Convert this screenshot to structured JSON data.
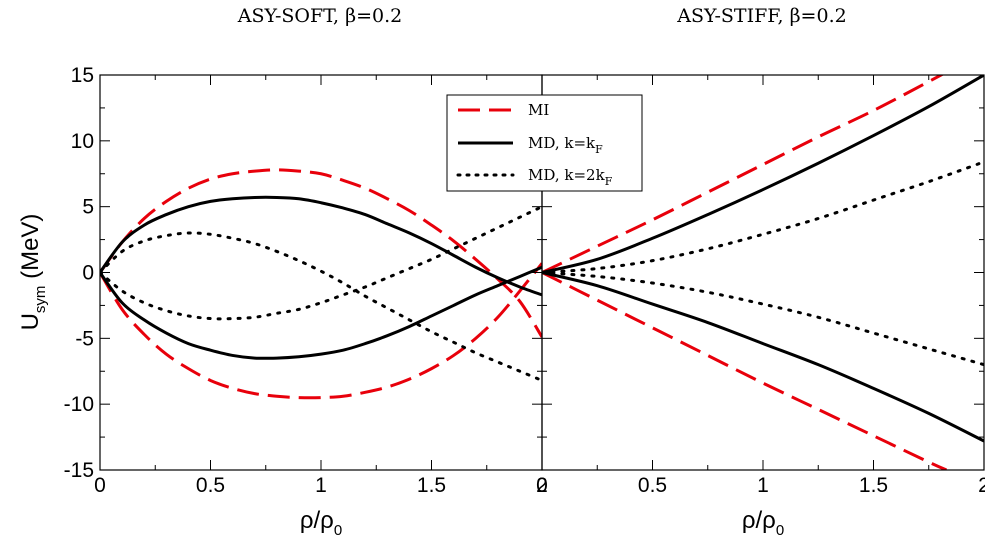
{
  "chart_data": [
    {
      "type": "line",
      "title": "ASY-SOFT, β=0.2",
      "xlabel": "ρ/ρ_0",
      "ylabel": "U_sym (MeV)",
      "xlim": [
        0,
        2
      ],
      "ylim": [
        -15,
        15
      ],
      "xticks": [
        "0",
        "0.5",
        "1",
        "1.5",
        "2"
      ],
      "yticks": [
        "15",
        "10",
        "5",
        "0",
        "-5",
        "-10",
        "-15"
      ],
      "series": [
        {
          "name": "MI",
          "style": "dashed",
          "color": "#e8000b",
          "x": [
            0,
            0.1,
            0.2,
            0.3,
            0.4,
            0.5,
            0.6,
            0.7,
            0.8,
            0.9,
            1.0,
            1.1,
            1.2,
            1.3,
            1.4,
            1.5,
            1.6,
            1.7,
            1.8,
            1.9,
            2.0
          ],
          "y": [
            0,
            2.3,
            4.1,
            5.4,
            6.4,
            7.1,
            7.5,
            7.7,
            7.8,
            7.7,
            7.5,
            7.0,
            6.4,
            5.6,
            4.7,
            3.6,
            2.4,
            1.0,
            -0.5,
            -2.2,
            -4.9
          ]
        },
        {
          "name": "MI",
          "style": "dashed",
          "color": "#e8000b",
          "legend": false,
          "x": [
            0,
            0.1,
            0.2,
            0.3,
            0.4,
            0.5,
            0.6,
            0.7,
            0.8,
            0.9,
            1.0,
            1.1,
            1.2,
            1.3,
            1.4,
            1.5,
            1.6,
            1.7,
            1.8,
            1.9,
            2.0
          ],
          "y": [
            0,
            -2.8,
            -4.7,
            -6.2,
            -7.3,
            -8.2,
            -8.8,
            -9.2,
            -9.4,
            -9.5,
            -9.5,
            -9.4,
            -9.1,
            -8.7,
            -8.1,
            -7.3,
            -6.3,
            -5.0,
            -3.4,
            -1.4,
            0.7
          ]
        },
        {
          "name": "MD, k=k_F",
          "style": "solid",
          "color": "#000000",
          "x": [
            0,
            0.1,
            0.2,
            0.3,
            0.4,
            0.5,
            0.6,
            0.7,
            0.8,
            0.9,
            1.0,
            1.1,
            1.2,
            1.3,
            1.4,
            1.5,
            1.6,
            1.7,
            1.8,
            1.9,
            2.0
          ],
          "y": [
            0,
            2.3,
            3.6,
            4.4,
            5.0,
            5.4,
            5.6,
            5.7,
            5.7,
            5.6,
            5.3,
            4.9,
            4.4,
            3.7,
            3.0,
            2.2,
            1.3,
            0.4,
            -0.4,
            -1.1,
            -1.7
          ]
        },
        {
          "name": "MD, k=k_F",
          "style": "solid",
          "color": "#000000",
          "legend": false,
          "x": [
            0,
            0.1,
            0.2,
            0.3,
            0.4,
            0.5,
            0.6,
            0.7,
            0.8,
            0.9,
            1.0,
            1.1,
            1.2,
            1.3,
            1.4,
            1.5,
            1.6,
            1.7,
            1.8,
            1.9,
            2.0
          ],
          "y": [
            0,
            -2.3,
            -3.6,
            -4.6,
            -5.4,
            -5.9,
            -6.3,
            -6.5,
            -6.5,
            -6.4,
            -6.2,
            -5.9,
            -5.4,
            -4.8,
            -4.1,
            -3.3,
            -2.5,
            -1.7,
            -1.0,
            -0.3,
            0.4
          ]
        },
        {
          "name": "MD, k=2k_F",
          "style": "dotted",
          "color": "#000000",
          "x": [
            0,
            0.1,
            0.2,
            0.3,
            0.4,
            0.5,
            0.6,
            0.7,
            0.8,
            0.9,
            1.0,
            1.1,
            1.2,
            1.3,
            1.4,
            1.5,
            1.6,
            1.7,
            1.8,
            1.9,
            2.0
          ],
          "y": [
            0,
            1.6,
            2.4,
            2.8,
            3.0,
            2.9,
            2.6,
            2.2,
            1.6,
            0.9,
            0.1,
            -0.8,
            -1.8,
            -2.7,
            -3.6,
            -4.5,
            -5.3,
            -6.1,
            -6.8,
            -7.5,
            -8.2
          ]
        },
        {
          "name": "MD, k=2k_F",
          "style": "dotted",
          "color": "#000000",
          "legend": false,
          "x": [
            0,
            0.1,
            0.2,
            0.3,
            0.4,
            0.5,
            0.6,
            0.7,
            0.8,
            0.9,
            1.0,
            1.1,
            1.2,
            1.3,
            1.4,
            1.5,
            1.6,
            1.7,
            1.8,
            1.9,
            2.0
          ],
          "y": [
            0,
            -1.4,
            -2.3,
            -2.9,
            -3.3,
            -3.5,
            -3.5,
            -3.4,
            -3.1,
            -2.8,
            -2.3,
            -1.7,
            -1.1,
            -0.4,
            0.3,
            1.0,
            1.8,
            2.6,
            3.4,
            4.2,
            5.0
          ]
        }
      ]
    },
    {
      "type": "line",
      "title": "ASY-STIFF, β=0.2",
      "xlabel": "ρ/ρ_0",
      "xlim": [
        0,
        2
      ],
      "ylim": [
        -15,
        15
      ],
      "xticks": [
        "0",
        "0.5",
        "1",
        "1.5",
        "2"
      ],
      "series": [
        {
          "name": "MI",
          "style": "dashed",
          "color": "#e8000b",
          "x": [
            0,
            0.25,
            0.5,
            0.75,
            1.0,
            1.25,
            1.5,
            1.75,
            1.85
          ],
          "y": [
            0,
            2.0,
            4.0,
            6.1,
            8.2,
            10.3,
            12.3,
            14.5,
            15.4
          ]
        },
        {
          "name": "MI",
          "style": "dashed",
          "color": "#e8000b",
          "legend": false,
          "x": [
            0,
            0.25,
            0.5,
            0.75,
            1.0,
            1.25,
            1.5,
            1.75,
            1.83
          ],
          "y": [
            0,
            -2.1,
            -4.2,
            -6.3,
            -8.4,
            -10.4,
            -12.4,
            -14.4,
            -15.0
          ]
        },
        {
          "name": "MD, k=k_F",
          "style": "solid",
          "color": "#000000",
          "x": [
            0,
            0.25,
            0.5,
            0.75,
            1.0,
            1.25,
            1.5,
            1.75,
            2.0
          ],
          "y": [
            0,
            1.0,
            2.6,
            4.4,
            6.3,
            8.3,
            10.4,
            12.6,
            15.0
          ]
        },
        {
          "name": "MD, k=k_F",
          "style": "solid",
          "color": "#000000",
          "legend": false,
          "x": [
            0,
            0.25,
            0.5,
            0.75,
            1.0,
            1.25,
            1.5,
            1.75,
            2.0
          ],
          "y": [
            0,
            -1.0,
            -2.4,
            -3.8,
            -5.4,
            -7.0,
            -8.8,
            -10.7,
            -12.8
          ]
        },
        {
          "name": "MD, k=2k_F",
          "style": "dotted",
          "color": "#000000",
          "x": [
            0,
            0.25,
            0.5,
            0.75,
            1.0,
            1.25,
            1.5,
            1.75,
            2.0
          ],
          "y": [
            0,
            0.3,
            0.9,
            1.8,
            2.9,
            4.1,
            5.5,
            6.9,
            8.4
          ]
        },
        {
          "name": "MD, k=2k_F",
          "style": "dotted",
          "color": "#000000",
          "legend": false,
          "x": [
            0,
            0.25,
            0.5,
            0.75,
            1.0,
            1.25,
            1.5,
            1.75,
            2.0
          ],
          "y": [
            0,
            -0.3,
            -0.8,
            -1.5,
            -2.4,
            -3.4,
            -4.6,
            -5.8,
            -7.0
          ]
        }
      ]
    }
  ]
}
